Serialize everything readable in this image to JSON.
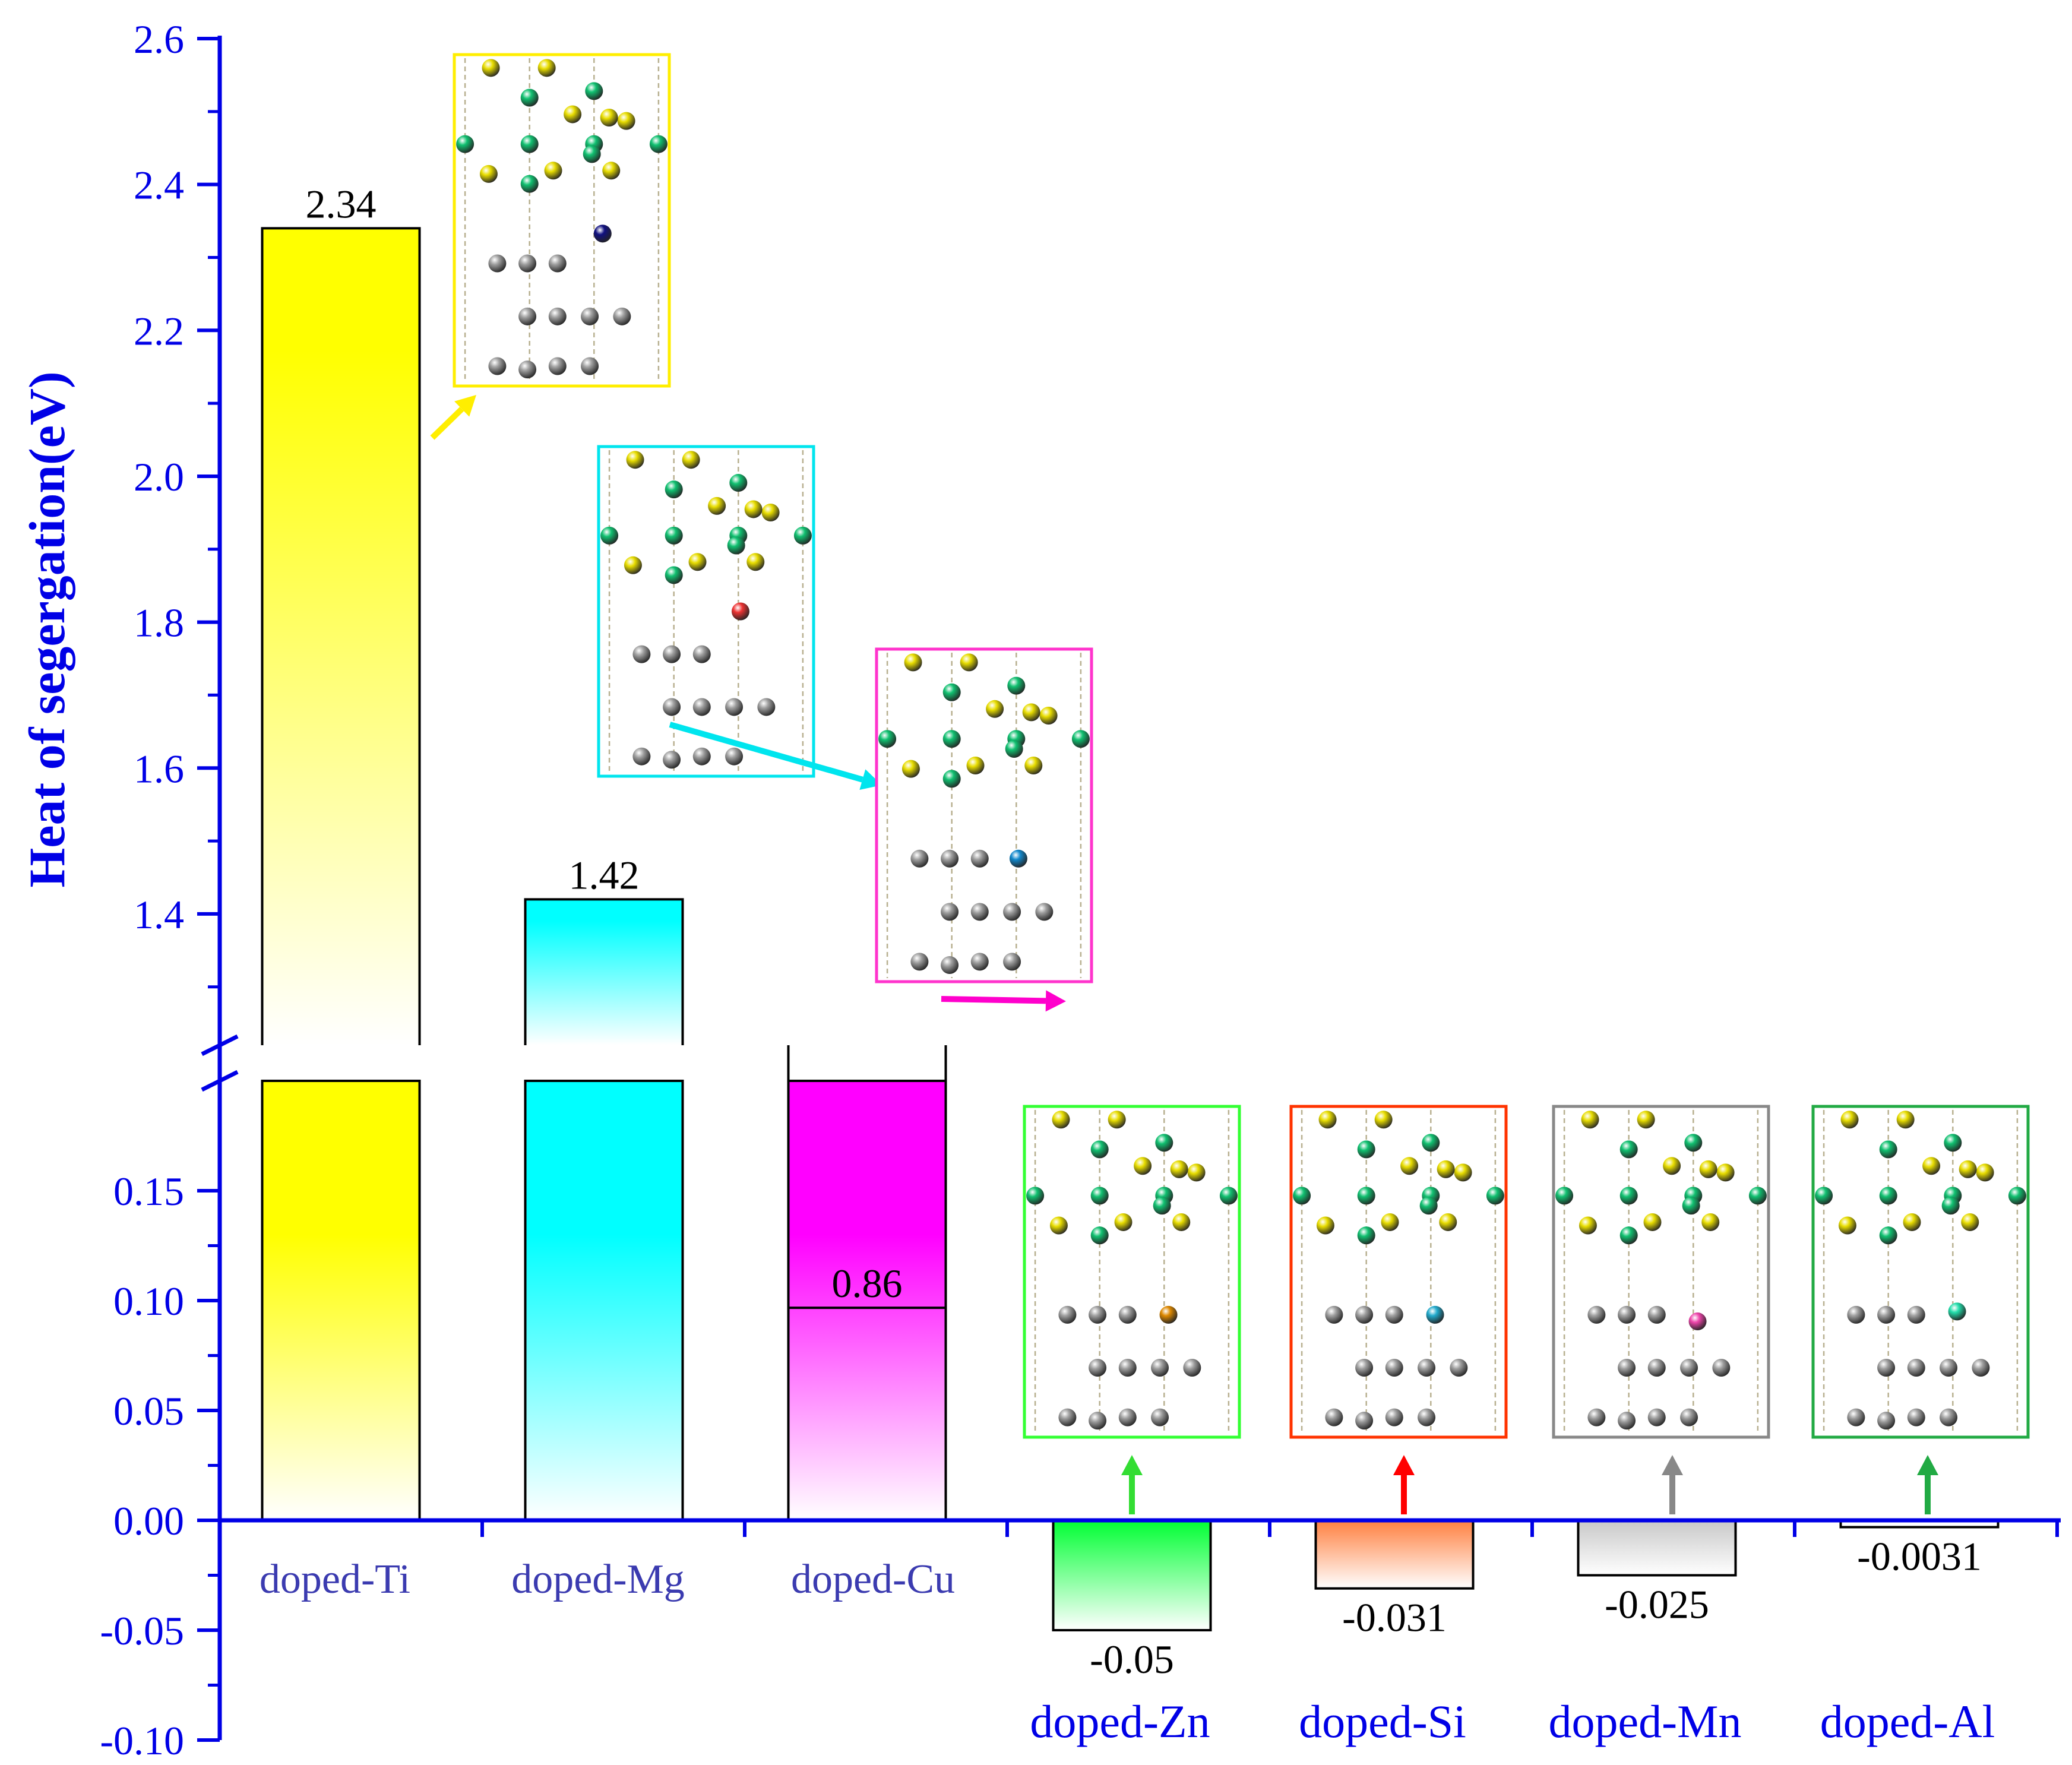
{
  "chart_data": {
    "type": "bar",
    "title": "",
    "xlabel": "",
    "ylabel": "Heat of segergation(eV)",
    "broken_axis": true,
    "lower_ylim": [
      -0.1,
      0.2
    ],
    "upper_ylim": [
      1.22,
      2.6
    ],
    "lower_ticks": [
      "-0.10",
      "-0.05",
      "0.00",
      "0.05",
      "0.10",
      "0.15"
    ],
    "upper_ticks": [
      "1.4",
      "1.6",
      "1.8",
      "2.0",
      "2.2",
      "2.4",
      "2.6"
    ],
    "categories": [
      "doped-Ti",
      "doped-Mg",
      "doped-Cu",
      "doped-Zn",
      "doped-Si",
      "doped-Mn",
      "doped-Al"
    ],
    "values": [
      2.34,
      1.42,
      0.86,
      -0.05,
      -0.031,
      -0.025,
      -0.0031
    ],
    "value_labels": [
      "2.34",
      "1.42",
      "0.86",
      "-0.05",
      "-0.031",
      "-0.025",
      "-0.0031"
    ],
    "bar_colors": [
      "#ffff00",
      "#00ffff",
      "#ff00ff",
      "#00ff33",
      "#ff8040",
      "#c8c8c8",
      "#ffffff"
    ],
    "inset_colors": [
      "#ffee00",
      "#00e5ee",
      "#ff33cc",
      "#33ff33",
      "#ff3300",
      "#888888",
      "#22aa44"
    ],
    "dopant_atom_colors": [
      "#101080",
      "#ee3333",
      "#1188cc",
      "#dd8800",
      "#22aacc",
      "#ee44aa",
      "#22ddaa"
    ],
    "arrow_colors": [
      "#ffee00",
      "#00e5ee",
      "#ff00cc",
      "#33dd33",
      "#ff0000",
      "#888888",
      "#22aa44"
    ],
    "colors": {
      "axis": "#0000e6",
      "host_green": "#10c070",
      "host_yellow": "#e8dd00",
      "host_gray": "#a0a0a0",
      "bond_line": "#b8b090"
    }
  }
}
